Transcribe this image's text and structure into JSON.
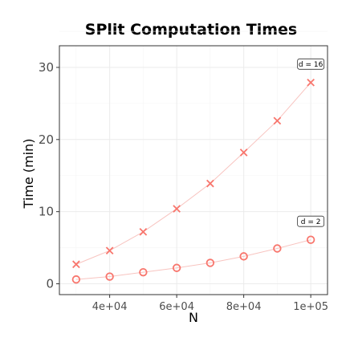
{
  "chart_data": {
    "type": "scatter",
    "title": "SPlit Computation Times",
    "xlabel": "N",
    "ylabel": "Time (min)",
    "xlim": [
      25000,
      105000
    ],
    "ylim": [
      -1.5,
      33
    ],
    "x_ticks": [
      40000,
      60000,
      80000,
      100000
    ],
    "x_tick_labels": [
      "4e+04",
      "6e+04",
      "8e+04",
      "1e+05"
    ],
    "y_ticks": [
      0,
      10,
      20,
      30
    ],
    "y_tick_labels": [
      "0",
      "10",
      "20",
      "30"
    ],
    "grid": true,
    "legend": "none",
    "colors": {
      "points": "#f8766d",
      "lines": "#f8c4c0"
    },
    "series": [
      {
        "name": "d = 16",
        "marker": "x",
        "x": [
          30000,
          40000,
          50000,
          60000,
          70000,
          80000,
          90000,
          100000
        ],
        "y": [
          2.7,
          4.6,
          7.2,
          10.4,
          13.9,
          18.2,
          22.6,
          27.9
        ]
      },
      {
        "name": "d = 2",
        "marker": "circle",
        "x": [
          30000,
          40000,
          50000,
          60000,
          70000,
          80000,
          90000,
          100000
        ],
        "y": [
          0.6,
          1.0,
          1.6,
          2.2,
          2.9,
          3.8,
          4.9,
          6.1
        ]
      }
    ]
  }
}
